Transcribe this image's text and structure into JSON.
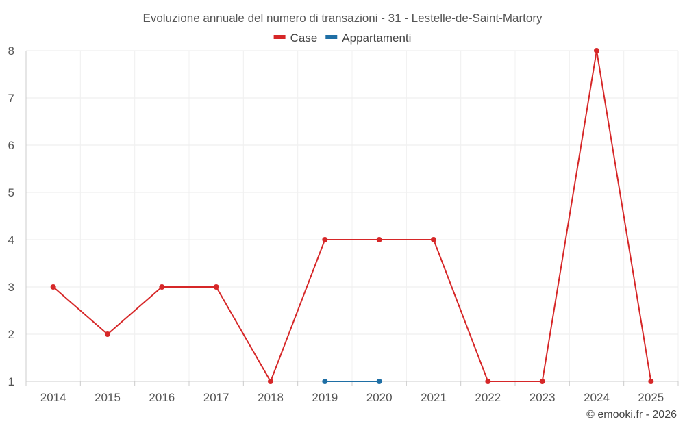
{
  "chart_data": {
    "type": "line",
    "title": "Evoluzione annuale del numero di transazioni - 31 - Lestelle-de-Saint-Martory",
    "categories": [
      "2014",
      "2015",
      "2016",
      "2017",
      "2018",
      "2019",
      "2020",
      "2021",
      "2022",
      "2023",
      "2024",
      "2025"
    ],
    "series": [
      {
        "name": "Case",
        "color": "#d62728",
        "values": [
          3,
          2,
          3,
          3,
          1,
          4,
          4,
          4,
          1,
          1,
          8,
          1
        ]
      },
      {
        "name": "Appartamenti",
        "color": "#1f6fa5",
        "values": [
          null,
          null,
          null,
          null,
          null,
          1,
          1,
          null,
          null,
          null,
          null,
          null
        ]
      }
    ],
    "ylim": [
      1,
      8
    ],
    "yticks": [
      1,
      2,
      3,
      4,
      5,
      6,
      7,
      8
    ],
    "grid": true,
    "legend": "top-center",
    "credit": "© emooki.fr - 2026"
  }
}
